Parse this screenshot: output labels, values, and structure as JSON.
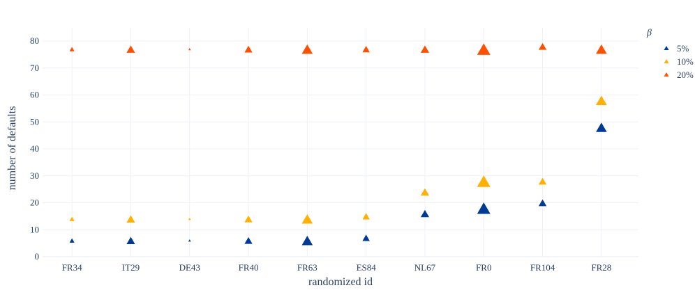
{
  "chart_data": {
    "type": "scatter",
    "title": "",
    "xlabel": "randomized id",
    "ylabel": "number of defaults",
    "categories": [
      "FR34",
      "IT29",
      "DE43",
      "FR40",
      "FR63",
      "ES84",
      "NL67",
      "FR0",
      "FR104",
      "FR28"
    ],
    "ylim": [
      0,
      84
    ],
    "yticks": [
      0,
      10,
      20,
      30,
      40,
      50,
      60,
      70,
      80
    ],
    "grid": true,
    "marker": "triangle-up",
    "marker_size_relative": [
      0.3,
      0.6,
      0.1,
      0.55,
      0.8,
      0.5,
      0.6,
      1.0,
      0.55,
      0.8
    ],
    "legend": {
      "title": "β",
      "placement": "top-right"
    },
    "series": [
      {
        "name": "5%",
        "color": "#003a96",
        "values": [
          6,
          6,
          6,
          6,
          6,
          7,
          16,
          18,
          20,
          48
        ]
      },
      {
        "name": "10%",
        "color": "#ffb000",
        "values": [
          14,
          14,
          14,
          14,
          14,
          15,
          24,
          28,
          28,
          58
        ]
      },
      {
        "name": "20%",
        "color": "#ff5000",
        "values": [
          77,
          77,
          77,
          77,
          77,
          77,
          77,
          77,
          78,
          77
        ]
      }
    ]
  }
}
